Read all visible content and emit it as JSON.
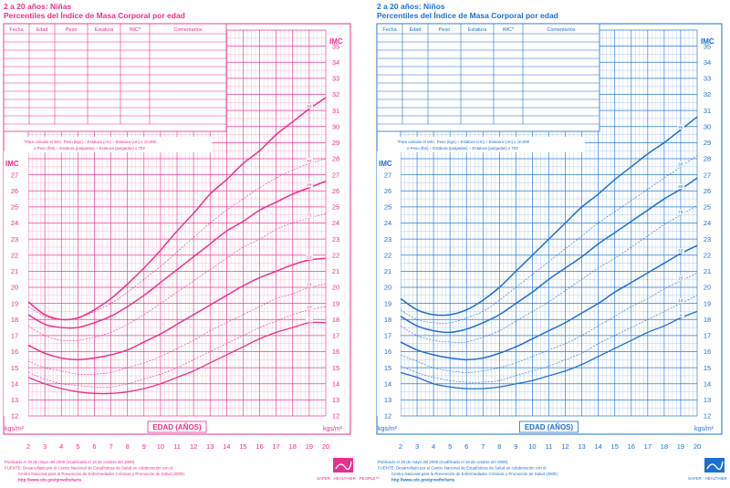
{
  "panels": [
    {
      "id": "girls",
      "color": "#e8308f",
      "title_line1": "2 a 20 años: Niñas",
      "title_line2": "Percentiles del Índice de Masa Corporal por edad",
      "table_headers": [
        "Fecha",
        "Edad",
        "Peso",
        "Estatura",
        "IMC*",
        "Comentarios"
      ],
      "formula_line1": "*Para calcular el IMC: Peso (kgs) ÷ Estatura (cm) ÷ Estatura (cm) x 10,000",
      "formula_line2": "o Peso (lbs) ÷ Estatura (pulgadas) ÷ Estatura (pulgadas) x 703",
      "ylabel_top": "IMC",
      "ylabel_left": "IMC",
      "unit_left": "kgs/m²",
      "unit_right": "kgs/m²",
      "xlabel": "EDAD (AÑOS)",
      "footer": [
        "Publicado el 30 de mayo del 2000 (modificado el 16 de octubre del 2000).",
        "FUENTE: Desarrollado por el Centro Nacional de Estadísticas de Salud en colaboración con el",
        "Centro Nacional para la Prevención de Enfermedades Crónicas y Promoción de Salud (2000).",
        "http://www.cdc.gov/growthcharts"
      ],
      "logo_text": "SAFER · HEALTHIER · PEOPLE™"
    },
    {
      "id": "boys",
      "color": "#1e6fd0",
      "title_line1": "2 a 20 años: Niños",
      "title_line2": "Percentiles del Índice de Masa Corporal por edad",
      "table_headers": [
        "Fecha",
        "Edad",
        "Peso",
        "Estatura",
        "IMC*",
        "Comentarios"
      ],
      "formula_line1": "*Para calcular el IMC: Peso (kgs) ÷ Estatura (cm) ÷ Estatura (cm) x 10,000",
      "formula_line2": "o Peso (lbs) ÷ Estatura (pulgadas) ÷ Estatura (pulgadas) x 703",
      "ylabel_top": "IMC",
      "ylabel_left": "IMC",
      "unit_left": "kgs/m²",
      "unit_right": "kgs/m²",
      "xlabel": "EDAD (AÑOS)",
      "footer": [
        "Publicado el 30 de mayo del 2000 (modificado el 16 de octubre del 2000).",
        "FUENTE: Desarrollado por el Centro Nacional de Estadísticas de Salud en colaboración con el",
        "Centro Nacional para la Prevención de Enfermedades Crónicas y Promoción de Salud (2000).",
        "http://www.cdc.gov/growthcharts"
      ],
      "logo_text": "SAFER · HEALTHIER · PEOPLE™"
    }
  ],
  "chart_data": [
    {
      "type": "line",
      "title": "Percentiles del Índice de Masa Corporal por edad",
      "subtitle": "2 a 20 años: Niñas",
      "xlabel": "EDAD (AÑOS)",
      "ylabel": "IMC",
      "units": "kgs/m²",
      "xlim": [
        2,
        20
      ],
      "ylim": [
        12,
        36
      ],
      "x_ticks": [
        2,
        3,
        4,
        5,
        6,
        7,
        8,
        9,
        10,
        11,
        12,
        13,
        14,
        15,
        16,
        17,
        18,
        19,
        20
      ],
      "y_ticks": [
        12,
        13,
        14,
        15,
        16,
        17,
        18,
        19,
        20,
        21,
        22,
        23,
        24,
        25,
        26,
        27,
        28,
        29,
        30,
        31,
        32,
        33,
        34,
        35
      ],
      "grid": true,
      "x": [
        2,
        3,
        4,
        5,
        6,
        7,
        8,
        9,
        10,
        11,
        12,
        13,
        14,
        15,
        16,
        17,
        18,
        19,
        20
      ],
      "series": [
        {
          "name": "5",
          "values": [
            14.4,
            14.0,
            13.7,
            13.5,
            13.4,
            13.4,
            13.5,
            13.7,
            14.0,
            14.4,
            14.8,
            15.3,
            15.8,
            16.3,
            16.8,
            17.2,
            17.5,
            17.8,
            17.8
          ]
        },
        {
          "name": "10",
          "values": [
            14.7,
            14.3,
            14.0,
            13.9,
            13.8,
            13.8,
            14.0,
            14.3,
            14.6,
            15.0,
            15.5,
            16.0,
            16.5,
            17.0,
            17.5,
            17.9,
            18.3,
            18.6,
            18.8
          ]
        },
        {
          "name": "25",
          "values": [
            15.4,
            15.0,
            14.8,
            14.6,
            14.6,
            14.7,
            15.0,
            15.3,
            15.7,
            16.2,
            16.7,
            17.3,
            17.8,
            18.3,
            18.8,
            19.3,
            19.6,
            20.0,
            20.2
          ]
        },
        {
          "name": "50",
          "values": [
            16.4,
            15.9,
            15.6,
            15.5,
            15.6,
            15.8,
            16.1,
            16.6,
            17.1,
            17.7,
            18.3,
            18.9,
            19.5,
            20.1,
            20.6,
            21.0,
            21.4,
            21.7,
            21.8
          ]
        },
        {
          "name": "75",
          "values": [
            17.6,
            17.0,
            16.7,
            16.7,
            16.9,
            17.2,
            17.7,
            18.3,
            19.0,
            19.7,
            20.4,
            21.1,
            21.8,
            22.5,
            23.0,
            23.6,
            24.0,
            24.3,
            24.6
          ]
        },
        {
          "name": "85",
          "values": [
            18.3,
            17.7,
            17.5,
            17.5,
            17.8,
            18.2,
            18.8,
            19.5,
            20.3,
            21.1,
            21.9,
            22.7,
            23.5,
            24.1,
            24.8,
            25.3,
            25.8,
            26.2,
            26.6
          ]
        },
        {
          "name": "90",
          "values": [
            18.8,
            18.2,
            18.0,
            18.1,
            18.5,
            19.0,
            19.7,
            20.5,
            21.3,
            22.2,
            23.1,
            24.0,
            24.8,
            25.5,
            26.2,
            26.8,
            27.3,
            27.7,
            28.0
          ]
        },
        {
          "name": "95",
          "values": [
            19.1,
            18.3,
            18.0,
            18.1,
            18.6,
            19.3,
            20.2,
            21.2,
            22.3,
            23.5,
            24.6,
            25.8,
            26.7,
            27.7,
            28.5,
            29.5,
            30.3,
            31.1,
            31.8
          ]
        }
      ]
    },
    {
      "type": "line",
      "title": "Percentiles del Índice de Masa Corporal por edad",
      "subtitle": "2 a 20 años: Niños",
      "xlabel": "EDAD (AÑOS)",
      "ylabel": "IMC",
      "units": "kgs/m²",
      "xlim": [
        2,
        20
      ],
      "ylim": [
        12,
        36
      ],
      "x_ticks": [
        2,
        3,
        4,
        5,
        6,
        7,
        8,
        9,
        10,
        11,
        12,
        13,
        14,
        15,
        16,
        17,
        18,
        19,
        20
      ],
      "y_ticks": [
        12,
        13,
        14,
        15,
        16,
        17,
        18,
        19,
        20,
        21,
        22,
        23,
        24,
        25,
        26,
        27,
        28,
        29,
        30,
        31,
        32,
        33,
        34,
        35
      ],
      "grid": true,
      "x": [
        2,
        3,
        4,
        5,
        6,
        7,
        8,
        9,
        10,
        11,
        12,
        13,
        14,
        15,
        16,
        17,
        18,
        19,
        20
      ],
      "series": [
        {
          "name": "5",
          "values": [
            14.7,
            14.4,
            14.0,
            13.8,
            13.7,
            13.7,
            13.8,
            14.0,
            14.2,
            14.5,
            14.8,
            15.2,
            15.7,
            16.2,
            16.7,
            17.2,
            17.6,
            18.1,
            18.5
          ]
        },
        {
          "name": "10",
          "values": [
            15.1,
            14.7,
            14.4,
            14.2,
            14.1,
            14.1,
            14.2,
            14.5,
            14.8,
            15.1,
            15.5,
            15.9,
            16.5,
            17.0,
            17.5,
            18.0,
            18.5,
            19.0,
            19.5
          ]
        },
        {
          "name": "25",
          "values": [
            15.8,
            15.4,
            15.0,
            14.8,
            14.7,
            14.8,
            15.0,
            15.3,
            15.7,
            16.1,
            16.5,
            17.0,
            17.6,
            18.2,
            18.8,
            19.3,
            19.9,
            20.4,
            20.9
          ]
        },
        {
          "name": "50",
          "values": [
            16.6,
            16.1,
            15.8,
            15.6,
            15.5,
            15.6,
            15.9,
            16.3,
            16.8,
            17.3,
            17.8,
            18.4,
            19.0,
            19.7,
            20.3,
            20.9,
            21.5,
            22.1,
            22.6
          ]
        },
        {
          "name": "75",
          "values": [
            17.6,
            17.0,
            16.7,
            16.6,
            16.6,
            16.9,
            17.3,
            17.9,
            18.5,
            19.1,
            19.8,
            20.5,
            21.2,
            21.8,
            22.5,
            23.2,
            23.9,
            24.5,
            25.1
          ]
        },
        {
          "name": "85",
          "values": [
            18.2,
            17.6,
            17.3,
            17.2,
            17.4,
            17.8,
            18.3,
            19.0,
            19.7,
            20.5,
            21.2,
            21.9,
            22.7,
            23.4,
            24.1,
            24.8,
            25.5,
            26.1,
            26.8
          ]
        },
        {
          "name": "90",
          "values": [
            18.6,
            18.0,
            17.8,
            17.8,
            18.1,
            18.5,
            19.2,
            20.0,
            20.8,
            21.6,
            22.4,
            23.2,
            24.0,
            24.7,
            25.4,
            26.1,
            26.8,
            27.5,
            28.2
          ]
        },
        {
          "name": "95",
          "values": [
            19.3,
            18.6,
            18.3,
            18.3,
            18.6,
            19.2,
            20.0,
            21.0,
            22.0,
            23.0,
            24.0,
            25.0,
            25.8,
            26.7,
            27.5,
            28.3,
            29.0,
            29.8,
            30.6
          ]
        }
      ]
    }
  ]
}
